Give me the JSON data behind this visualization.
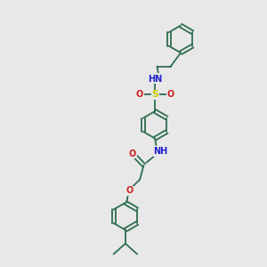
{
  "background_color": "#e8e8e8",
  "bond_color": "#2d6e4e",
  "atom_colors": {
    "N": "#2020cc",
    "O": "#cc2020",
    "S": "#cccc00",
    "C": "#2d6e4e",
    "H": "#2020cc"
  }
}
